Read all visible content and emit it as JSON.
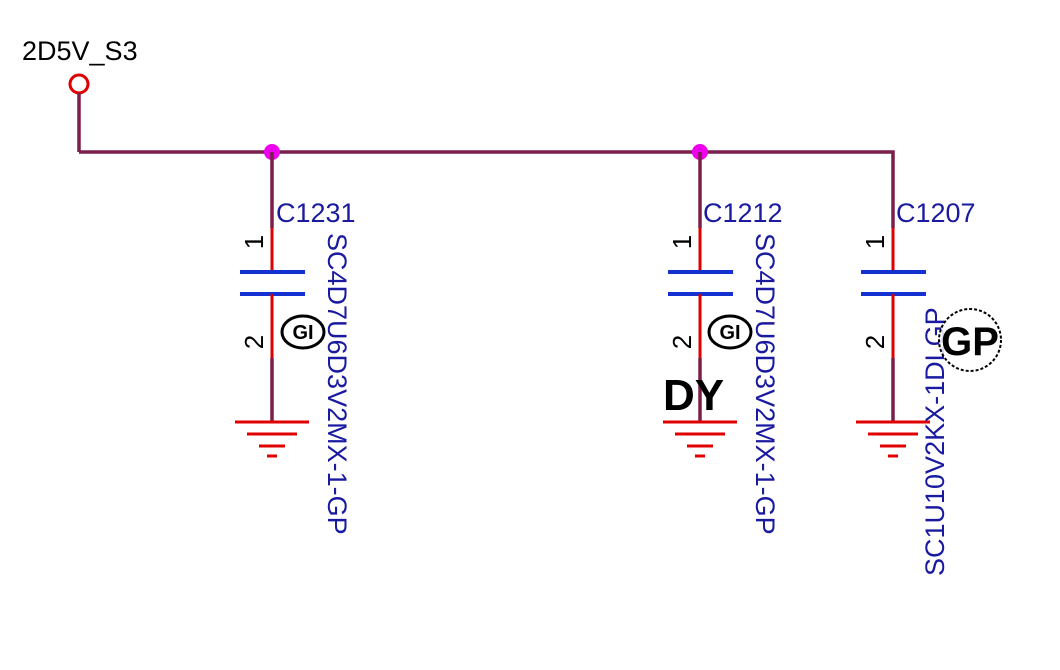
{
  "power_net": {
    "label": "2D5V_S3"
  },
  "colors": {
    "wire": "#7a1f4a",
    "pin": "#e00000",
    "cap_plate": "#1530d0",
    "ground": "#e00000",
    "junction": "#ee00ee",
    "text_blue": "#1a1aa0"
  },
  "capacitors": [
    {
      "ref": "C1231",
      "value": "SC4D7U6D3V2MX-1-GP",
      "pin1": "1",
      "pin2": "2",
      "badge": "GI"
    },
    {
      "ref": "C1212",
      "value": "SC4D7U6D3V2MX-1-GP",
      "pin1": "1",
      "pin2": "2",
      "badge": "GI",
      "stamp": "DY"
    },
    {
      "ref": "C1207",
      "value": "SC1U10V2KX-1DLGP",
      "pin1": "1",
      "pin2": "2",
      "badge": "GP"
    }
  ]
}
